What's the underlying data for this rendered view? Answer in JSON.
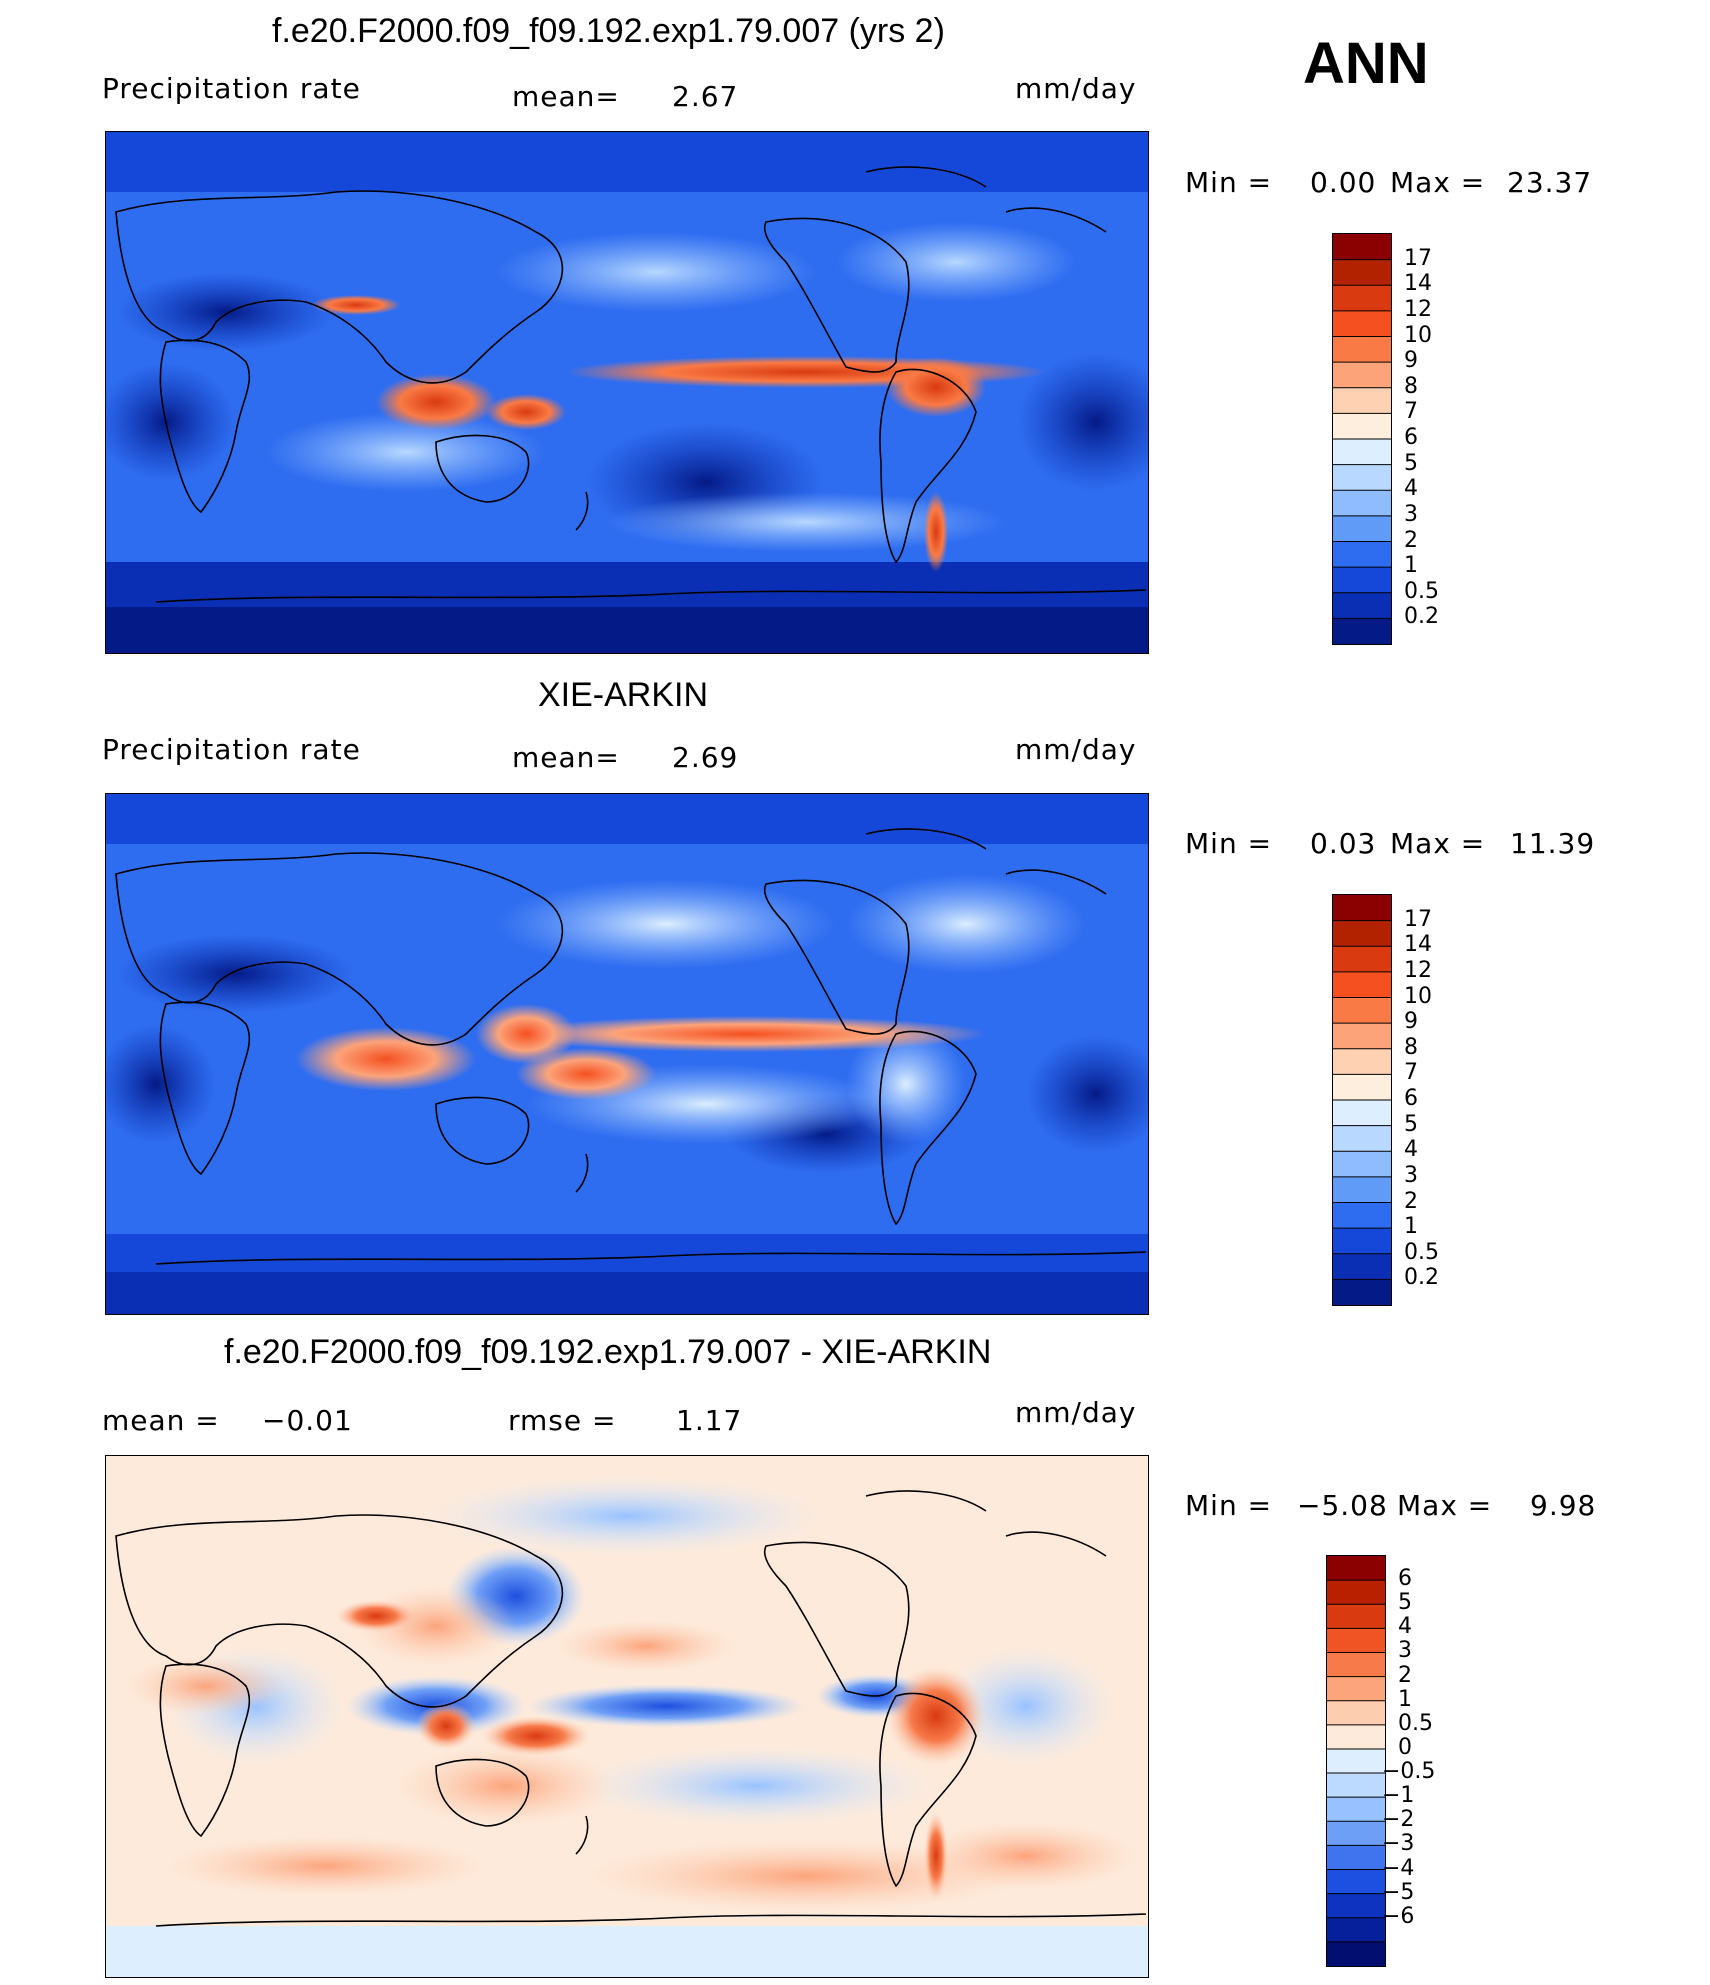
{
  "season_label": "ANN",
  "panels": [
    {
      "title": "f.e20.F2000.f09_f09.192.exp1.79.007 (yrs 2)",
      "left_label": "Precipitation rate",
      "mid_label": "mean=",
      "mid_value": "2.67",
      "units": "mm/day",
      "min_label": "Min =",
      "min_value": "0.00",
      "max_label": "Max =",
      "max_value": "23.37",
      "colorbar": {
        "colors": [
          "#8b0000",
          "#b22200",
          "#d93a10",
          "#f55020",
          "#fa7a45",
          "#fca37a",
          "#fdd1b2",
          "#fdeedd",
          "#dceeff",
          "#b8d8ff",
          "#8fbcff",
          "#5f9bf7",
          "#2f6df0",
          "#1548d8",
          "#0a2eb4",
          "#041a86"
        ],
        "labels": [
          "17",
          "14",
          "12",
          "10",
          "9",
          "8",
          "7",
          "6",
          "5",
          "4",
          "3",
          "2",
          "1",
          "0.5",
          "0.2"
        ]
      }
    },
    {
      "title": "XIE-ARKIN",
      "left_label": "Precipitation rate",
      "mid_label": "mean=",
      "mid_value": "2.69",
      "units": "mm/day",
      "min_label": "Min =",
      "min_value": "0.03",
      "max_label": "Max =",
      "max_value": "11.39",
      "colorbar": {
        "colors": [
          "#8b0000",
          "#b22200",
          "#d93a10",
          "#f55020",
          "#fa7a45",
          "#fca37a",
          "#fdd1b2",
          "#fdeedd",
          "#dceeff",
          "#b8d8ff",
          "#8fbcff",
          "#5f9bf7",
          "#2f6df0",
          "#1548d8",
          "#0a2eb4",
          "#041a86"
        ],
        "labels": [
          "17",
          "14",
          "12",
          "10",
          "9",
          "8",
          "7",
          "6",
          "5",
          "4",
          "3",
          "2",
          "1",
          "0.5",
          "0.2"
        ]
      }
    },
    {
      "title": "f.e20.F2000.f09_f09.192.exp1.79.007 - XIE-ARKIN",
      "left_label": "mean =",
      "left_value": "−0.01",
      "mid_label": "rmse =",
      "mid_value": "1.17",
      "units": "mm/day",
      "min_label": "Min =",
      "min_value": "−5.08",
      "max_label": "Max =",
      "max_value": "9.98",
      "colorbar": {
        "colors": [
          "#8b0000",
          "#b82000",
          "#d93a10",
          "#f05424",
          "#f77a4a",
          "#fca47c",
          "#fdcdb0",
          "#fdeadb",
          "#ddeeff",
          "#bcd9ff",
          "#98c2ff",
          "#6e9ff6",
          "#3f74ee",
          "#1d4fe0",
          "#0d33c0",
          "#061f9a",
          "#020f70"
        ],
        "labels": [
          "6",
          "5",
          "4",
          "3",
          "2",
          "1",
          "0.5",
          "0",
          "−0.5",
          "−1",
          "−2",
          "−3",
          "−4",
          "−5",
          "−6"
        ]
      }
    }
  ]
}
